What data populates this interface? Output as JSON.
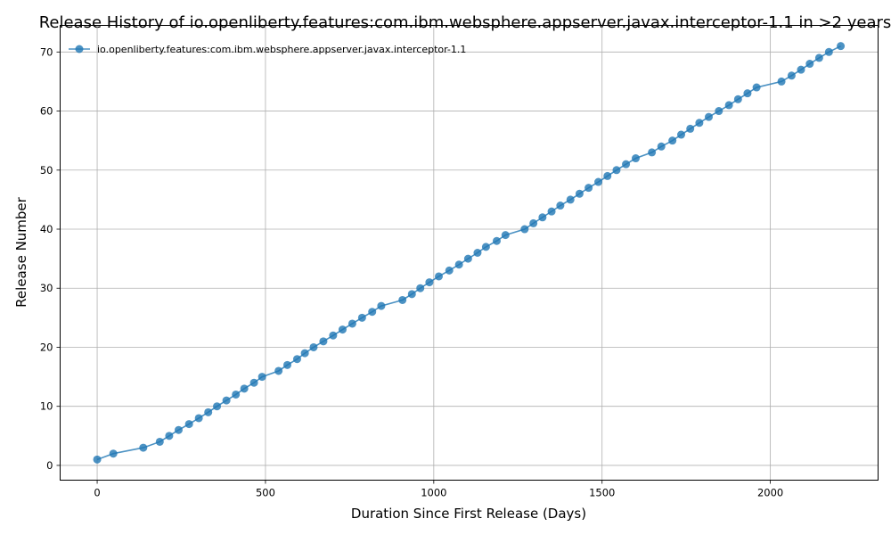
{
  "chart_data": {
    "type": "line",
    "title": "Release History of io.openliberty.features:com.ibm.websphere.appserver.javax.interceptor-1.1 in >2 years",
    "xlabel": "Duration Since First Release (Days)",
    "ylabel": "Release Number",
    "xlim": [
      -110,
      2320
    ],
    "ylim": [
      -2.5,
      74.5
    ],
    "xticks": [
      0,
      500,
      1000,
      1500,
      2000
    ],
    "yticks": [
      0,
      10,
      20,
      30,
      40,
      50,
      60,
      70
    ],
    "grid": true,
    "legend": "top-left",
    "colors": {
      "series": "#1f77b4",
      "grid": "#b0b0b0"
    },
    "series": [
      {
        "name": "io.openliberty.features:com.ibm.websphere.appserver.javax.interceptor-1.1",
        "x": [
          0,
          48,
          137,
          186,
          214,
          242,
          273,
          302,
          330,
          356,
          384,
          412,
          437,
          466,
          490,
          539,
          565,
          594,
          617,
          643,
          672,
          701,
          729,
          758,
          787,
          817,
          844,
          907,
          935,
          960,
          987,
          1015,
          1046,
          1075,
          1102,
          1130,
          1155,
          1187,
          1213,
          1270,
          1296,
          1323,
          1350,
          1376,
          1406,
          1433,
          1460,
          1489,
          1516,
          1543,
          1571,
          1600,
          1648,
          1676,
          1709,
          1735,
          1762,
          1789,
          1817,
          1847,
          1877,
          1904,
          1932,
          1959,
          2033,
          2063,
          2091,
          2117,
          2145,
          2174,
          2209
        ],
        "y": [
          1,
          2,
          3,
          4,
          5,
          6,
          7,
          8,
          9,
          10,
          11,
          12,
          13,
          14,
          15,
          16,
          17,
          18,
          19,
          20,
          21,
          22,
          23,
          24,
          25,
          26,
          27,
          28,
          29,
          30,
          31,
          32,
          33,
          34,
          35,
          36,
          37,
          38,
          39,
          40,
          41,
          42,
          43,
          44,
          45,
          46,
          47,
          48,
          49,
          50,
          51,
          52,
          53,
          54,
          55,
          56,
          57,
          58,
          59,
          60,
          61,
          62,
          63,
          64,
          65,
          66,
          67,
          68,
          69,
          70,
          71
        ]
      }
    ]
  }
}
